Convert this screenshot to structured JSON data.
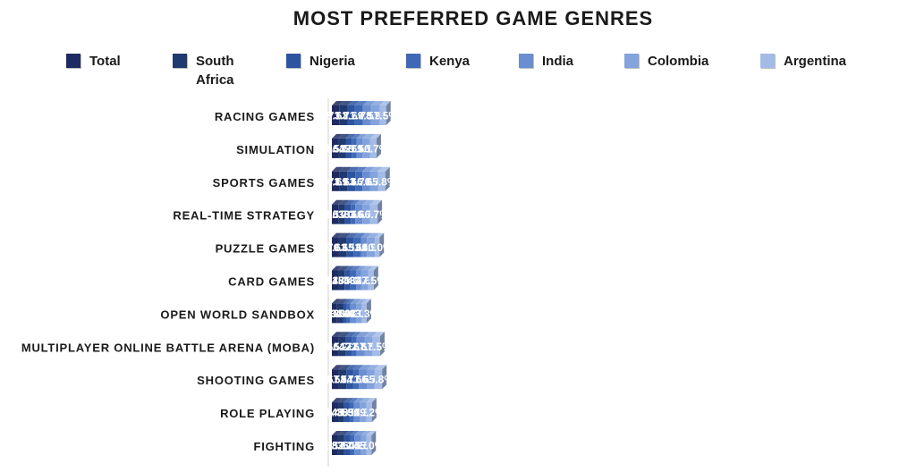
{
  "chart_data": {
    "type": "bar",
    "orientation": "horizontal",
    "stacked": true,
    "title": "MOST PREFERRED GAME GENRES",
    "legend_position": "top",
    "categories": [
      "RACING GAMES",
      "SIMULATION",
      "SPORTS GAMES",
      "REAL-TIME STRATEGY",
      "PUZZLE GAMES",
      "CARD GAMES",
      "OPEN WORLD SANDBOX",
      "MULTIPLAYER ONLINE BATTLE ARENA (MOBA)",
      "SHOOTING GAMES",
      "ROLE PLAYING",
      "FIGHTING"
    ],
    "series": [
      {
        "name": "Total",
        "color": "#1f2a63",
        "values": [
          65.1,
          55.5,
          64.0,
          56.5,
          59.0,
          51.4,
          45.8,
          58.5,
          60.0,
          51.4,
          50.9
        ]
      },
      {
        "name": "South Africa",
        "color": "#1f3a6f",
        "values": [
          73.8,
          66.9,
          73.1,
          60.7,
          70.3,
          61.4,
          53.1,
          66.2,
          67.6,
          54.5,
          58.6
        ]
      },
      {
        "name": "Nigeria",
        "color": "#2d54a0",
        "values": [
          63.7,
          53.5,
          69.4,
          51.0,
          63.1,
          48.4,
          34.4,
          51.6,
          58.0,
          48.4,
          52.2
        ]
      },
      {
        "name": "Kenya",
        "color": "#3e69b6",
        "values": [
          71.4,
          42.2,
          63.3,
          38.8,
          65.3,
          55.1,
          30.6,
          42.2,
          54.4,
          38.8,
          36.7
        ]
      },
      {
        "name": "India",
        "color": "#6a8ed0",
        "values": [
          69.5,
          51.0,
          66.2,
          63.6,
          53.0,
          43.7,
          52.3,
          72.8,
          71.5,
          53.0,
          60.9
        ]
      },
      {
        "name": "Colombia",
        "color": "#83a3dc",
        "values": [
          78.9,
          69.1,
          70.7,
          66.7,
          69.9,
          62.6,
          48.0,
          67.5,
          66.7,
          59.3,
          45.5
        ]
      },
      {
        "name": "Argentina",
        "color": "#a3bbe6",
        "values": [
          57.5,
          56.7,
          65.8,
          66.7,
          40.0,
          47.5,
          43.3,
          67.5,
          65.8,
          49.2,
          45.0
        ]
      }
    ]
  }
}
